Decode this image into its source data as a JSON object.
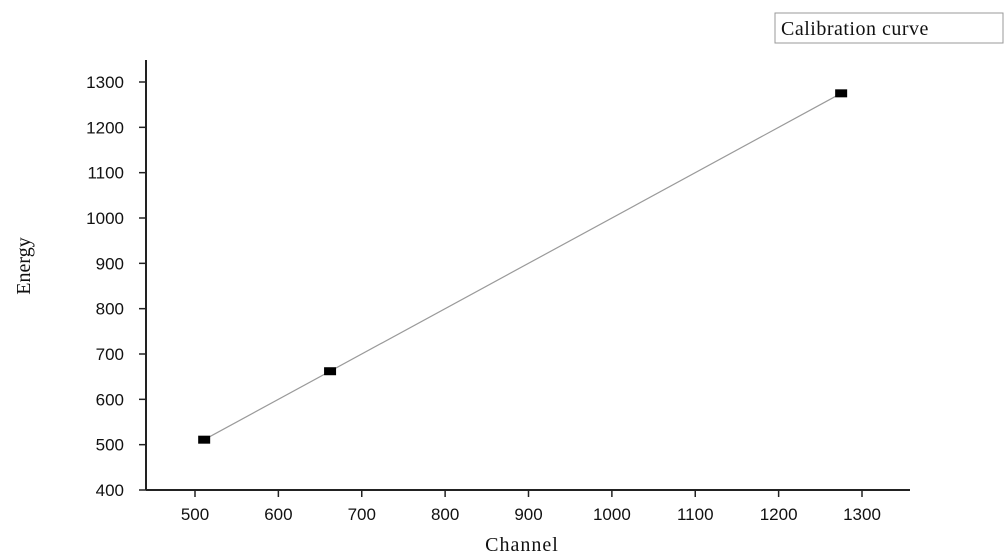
{
  "chart_data": {
    "type": "scatter",
    "title": "",
    "xlabel": "Channel",
    "ylabel": "Energy",
    "xlim": [
      450,
      1350
    ],
    "ylim": [
      400,
      1300
    ],
    "xticks": [
      500,
      600,
      700,
      800,
      900,
      1000,
      1100,
      1200,
      1300
    ],
    "yticks": [
      400,
      500,
      600,
      700,
      800,
      900,
      1000,
      1100,
      1200,
      1300
    ],
    "grid": false,
    "legend": {
      "position": "top-right",
      "entries": [
        "Calibration curve"
      ]
    },
    "series": [
      {
        "name": "Calibration curve",
        "marker": "square",
        "line": "linear-fit",
        "points": [
          {
            "x": 511,
            "y": 511
          },
          {
            "x": 662,
            "y": 662
          },
          {
            "x": 1275,
            "y": 1275
          }
        ]
      }
    ],
    "colors": {
      "marker": "#000000",
      "line": "#9a9a9a",
      "axis": "#222222"
    }
  }
}
